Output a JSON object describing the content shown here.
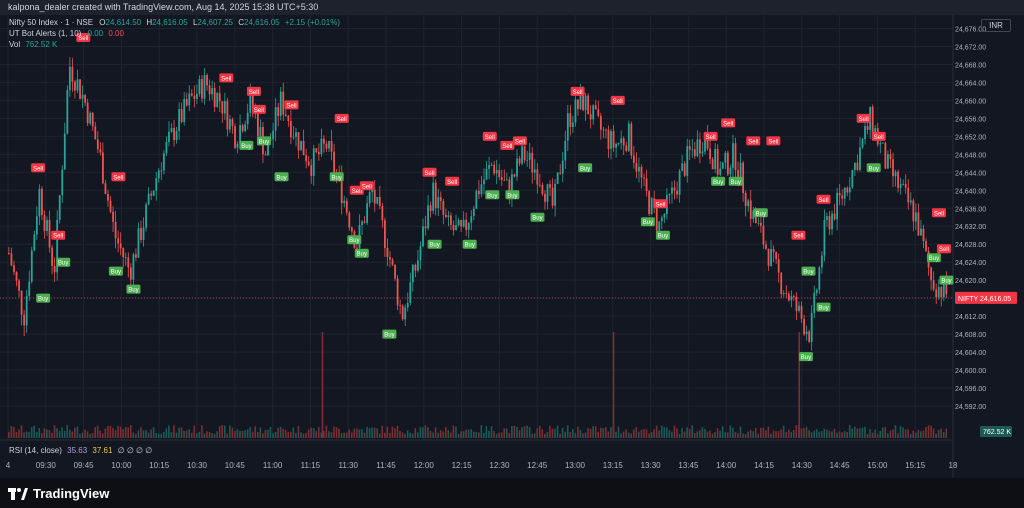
{
  "header": {
    "attribution": "kalpona_dealer created with TradingView.com, Aug 14, 2025 15:38 UTC+5:30"
  },
  "legend": {
    "symbol": "Nifty 50 Index · 1 · NSE",
    "open_label": "O",
    "open": "24,614.50",
    "high_label": "H",
    "high": "24,616.05",
    "low_label": "L",
    "low": "24,607.25",
    "close_label": "C",
    "close": "24,616.05",
    "change": "+2.15 (+0.01%)",
    "indicator": "UT Bot Alerts (1, 10)",
    "indicator_v1": "0.00",
    "indicator_v2": "0.00",
    "vol_label": "Vol",
    "vol_value": "762.52 K"
  },
  "rsi_legend": {
    "label": "RSI (14, close)",
    "v1": "35.63",
    "v2": "37.61",
    "rest": "∅ ∅ ∅ ∅"
  },
  "currency": "INR",
  "brand": {
    "name": "TradingView"
  },
  "colors": {
    "up": "#26a69a",
    "down": "#ef5350",
    "buy": "#4caf50",
    "sell": "#f23645",
    "grid": "#1f2330",
    "text": "#b2b5be"
  },
  "chart_data": {
    "type": "candlestick",
    "ylim": [
      24590,
      24679
    ],
    "y_ticks": [
      "24,592.00",
      "24,596.00",
      "24,600.00",
      "24,604.00",
      "24,608.00",
      "24,612.00",
      "24,616.00",
      "24,620.00",
      "24,624.00",
      "24,628.00",
      "24,632.00",
      "24,636.00",
      "24,640.00",
      "24,644.00",
      "24,648.00",
      "24,652.00",
      "24,656.00",
      "24,660.00",
      "24,664.00",
      "24,668.00",
      "24,672.00",
      "24,676.00"
    ],
    "x_ticks": [
      "4",
      "09:30",
      "09:45",
      "10:00",
      "10:15",
      "10:30",
      "10:45",
      "11:00",
      "11:15",
      "11:30",
      "11:45",
      "12:00",
      "12:15",
      "12:30",
      "12:45",
      "13:00",
      "13:15",
      "13:30",
      "13:45",
      "14:00",
      "14:15",
      "14:30",
      "14:45",
      "15:00",
      "15:15",
      "18"
    ],
    "last_price": {
      "symbol": "NIFTY",
      "value": "24,616.05",
      "y": 24616.05
    },
    "volume_label": "762.52 K",
    "price_path": [
      [
        9.26,
        24626
      ],
      [
        9.3,
        24612
      ],
      [
        9.36,
        24640
      ],
      [
        9.4,
        24622
      ],
      [
        9.45,
        24668
      ],
      [
        9.48,
        24660
      ],
      [
        9.52,
        24648
      ],
      [
        9.57,
        24630
      ],
      [
        10.02,
        24622
      ],
      [
        10.08,
        24634
      ],
      [
        10.14,
        24646
      ],
      [
        10.2,
        24654
      ],
      [
        10.25,
        24660
      ],
      [
        10.3,
        24664
      ],
      [
        10.36,
        24660
      ],
      [
        10.42,
        24652
      ],
      [
        10.48,
        24660
      ],
      [
        10.54,
        24648
      ],
      [
        11.0,
        24660
      ],
      [
        11.06,
        24652
      ],
      [
        11.12,
        24646
      ],
      [
        11.18,
        24650
      ],
      [
        11.24,
        24640
      ],
      [
        11.3,
        24628
      ],
      [
        11.36,
        24640
      ],
      [
        11.42,
        24628
      ],
      [
        11.48,
        24612
      ],
      [
        11.54,
        24624
      ],
      [
        12.0,
        24640
      ],
      [
        12.06,
        24632
      ],
      [
        12.12,
        24630
      ],
      [
        12.18,
        24640
      ],
      [
        12.24,
        24646
      ],
      [
        12.3,
        24640
      ],
      [
        12.36,
        24648
      ],
      [
        12.42,
        24644
      ],
      [
        12.48,
        24636
      ],
      [
        12.54,
        24656
      ],
      [
        13.0,
        24660
      ],
      [
        13.06,
        24654
      ],
      [
        13.12,
        24650
      ],
      [
        13.18,
        24652
      ],
      [
        13.24,
        24640
      ],
      [
        13.3,
        24632
      ],
      [
        13.36,
        24640
      ],
      [
        13.42,
        24648
      ],
      [
        13.48,
        24652
      ],
      [
        13.54,
        24644
      ],
      [
        14.0,
        24648
      ],
      [
        14.06,
        24636
      ],
      [
        14.12,
        24628
      ],
      [
        14.18,
        24620
      ],
      [
        14.24,
        24614
      ],
      [
        14.3,
        24608
      ],
      [
        14.36,
        24632
      ],
      [
        14.42,
        24638
      ],
      [
        14.48,
        24646
      ],
      [
        14.54,
        24656
      ],
      [
        15.0,
        24646
      ],
      [
        15.06,
        24640
      ],
      [
        15.12,
        24634
      ],
      [
        15.18,
        24620
      ],
      [
        15.24,
        24617
      ]
    ],
    "signals": [
      {
        "type": "Sell",
        "t": 9.27,
        "y": 24645
      },
      {
        "type": "Buy",
        "t": 9.29,
        "y": 24616
      },
      {
        "type": "Sell",
        "t": 9.35,
        "y": 24630
      },
      {
        "type": "Buy",
        "t": 9.37,
        "y": 24624
      },
      {
        "type": "Sell",
        "t": 9.45,
        "y": 24674
      },
      {
        "type": "Sell",
        "t": 9.59,
        "y": 24643
      },
      {
        "type": "Buy",
        "t": 9.58,
        "y": 24622
      },
      {
        "type": "Buy",
        "t": 10.05,
        "y": 24618
      },
      {
        "type": "Sell",
        "t": 10.42,
        "y": 24665
      },
      {
        "type": "Sell",
        "t": 10.53,
        "y": 24662
      },
      {
        "type": "Buy",
        "t": 10.5,
        "y": 24650
      },
      {
        "type": "Sell",
        "t": 10.55,
        "y": 24658
      },
      {
        "type": "Buy",
        "t": 10.57,
        "y": 24651
      },
      {
        "type": "Sell",
        "t": 11.08,
        "y": 24659
      },
      {
        "type": "Buy",
        "t": 11.04,
        "y": 24643
      },
      {
        "type": "Sell",
        "t": 11.28,
        "y": 24656
      },
      {
        "type": "Buy",
        "t": 11.26,
        "y": 24643
      },
      {
        "type": "Sell",
        "t": 11.34,
        "y": 24640
      },
      {
        "type": "Sell",
        "t": 11.38,
        "y": 24641
      },
      {
        "type": "Buy",
        "t": 11.33,
        "y": 24629
      },
      {
        "type": "Buy",
        "t": 11.36,
        "y": 24626
      },
      {
        "type": "Buy",
        "t": 11.47,
        "y": 24608
      },
      {
        "type": "Sell",
        "t": 12.03,
        "y": 24644
      },
      {
        "type": "Buy",
        "t": 12.05,
        "y": 24628
      },
      {
        "type": "Sell",
        "t": 12.12,
        "y": 24642
      },
      {
        "type": "Buy",
        "t": 12.19,
        "y": 24628
      },
      {
        "type": "Sell",
        "t": 12.27,
        "y": 24652
      },
      {
        "type": "Buy",
        "t": 12.28,
        "y": 24639
      },
      {
        "type": "Sell",
        "t": 12.34,
        "y": 24650
      },
      {
        "type": "Sell",
        "t": 12.39,
        "y": 24651
      },
      {
        "type": "Buy",
        "t": 12.36,
        "y": 24639
      },
      {
        "type": "Buy",
        "t": 12.46,
        "y": 24634
      },
      {
        "type": "Sell",
        "t": 13.02,
        "y": 24662
      },
      {
        "type": "Buy",
        "t": 13.05,
        "y": 24645
      },
      {
        "type": "Sell",
        "t": 13.18,
        "y": 24660
      },
      {
        "type": "Sell",
        "t": 13.35,
        "y": 24637
      },
      {
        "type": "Buy",
        "t": 13.3,
        "y": 24633
      },
      {
        "type": "Buy",
        "t": 13.36,
        "y": 24630
      },
      {
        "type": "Sell",
        "t": 13.55,
        "y": 24652
      },
      {
        "type": "Buy",
        "t": 13.58,
        "y": 24642
      },
      {
        "type": "Sell",
        "t": 14.02,
        "y": 24655
      },
      {
        "type": "Buy",
        "t": 14.05,
        "y": 24642
      },
      {
        "type": "Sell",
        "t": 14.12,
        "y": 24651
      },
      {
        "type": "Buy",
        "t": 14.15,
        "y": 24635
      },
      {
        "type": "Sell",
        "t": 14.2,
        "y": 24651
      },
      {
        "type": "Sell",
        "t": 14.3,
        "y": 24630
      },
      {
        "type": "Buy",
        "t": 14.34,
        "y": 24622
      },
      {
        "type": "Sell",
        "t": 14.4,
        "y": 24638
      },
      {
        "type": "Buy",
        "t": 14.4,
        "y": 24614
      },
      {
        "type": "Buy",
        "t": 14.33,
        "y": 24603
      },
      {
        "type": "Sell",
        "t": 14.56,
        "y": 24656
      },
      {
        "type": "Buy",
        "t": 15.0,
        "y": 24645
      },
      {
        "type": "Sell",
        "t": 15.02,
        "y": 24652
      },
      {
        "type": "Sell",
        "t": 15.26,
        "y": 24635
      },
      {
        "type": "Buy",
        "t": 15.24,
        "y": 24625
      },
      {
        "type": "Sell",
        "t": 15.28,
        "y": 24627
      },
      {
        "type": "Buy",
        "t": 15.29,
        "y": 24620
      }
    ],
    "volume_spike_times": [
      11.2,
      13.16,
      14.3
    ],
    "rsi": {
      "v1": 35.63,
      "v2": 37.61
    }
  }
}
